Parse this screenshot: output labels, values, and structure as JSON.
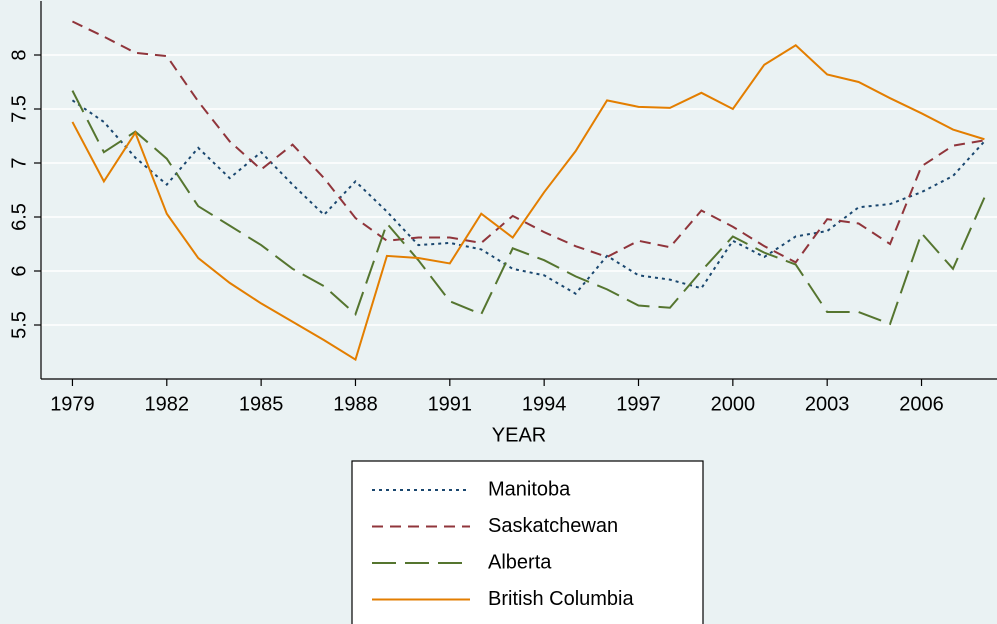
{
  "chart_data": {
    "type": "line",
    "x_label": "YEAR",
    "x": [
      1979,
      1980,
      1981,
      1982,
      1983,
      1984,
      1985,
      1986,
      1987,
      1988,
      1989,
      1990,
      1991,
      1992,
      1993,
      1994,
      1995,
      1996,
      1997,
      1998,
      1999,
      2000,
      2001,
      2002,
      2003,
      2004,
      2005,
      2006,
      2007,
      2008
    ],
    "series": [
      {
        "name": "Manitoba",
        "color": "#1a476f",
        "dash": "dot",
        "values": [
          7.58,
          7.38,
          7.05,
          6.8,
          7.14,
          6.86,
          7.1,
          6.8,
          6.52,
          6.83,
          6.55,
          6.24,
          6.26,
          6.2,
          6.02,
          5.96,
          5.79,
          6.14,
          5.96,
          5.92,
          5.84,
          6.28,
          6.13,
          6.32,
          6.37,
          6.59,
          6.62,
          6.73,
          6.88,
          7.2
        ]
      },
      {
        "name": "Saskatchewan",
        "color": "#90353b",
        "dash": "shortdash",
        "values": [
          8.31,
          8.17,
          8.02,
          7.99,
          7.57,
          7.2,
          6.94,
          7.17,
          6.86,
          6.49,
          6.28,
          6.31,
          6.31,
          6.26,
          6.51,
          6.36,
          6.23,
          6.13,
          6.28,
          6.22,
          6.56,
          6.41,
          6.23,
          6.08,
          6.48,
          6.44,
          6.25,
          6.97,
          7.16,
          7.21
        ]
      },
      {
        "name": "Alberta",
        "color": "#55752f",
        "dash": "longdash",
        "values": [
          7.67,
          7.1,
          7.29,
          7.04,
          6.6,
          6.42,
          6.24,
          6.02,
          5.86,
          5.6,
          6.44,
          6.1,
          5.72,
          5.6,
          6.21,
          6.1,
          5.95,
          5.83,
          5.68,
          5.66,
          6.0,
          6.32,
          6.17,
          6.06,
          5.62,
          5.62,
          5.51,
          6.35,
          6.02,
          6.68
        ]
      },
      {
        "name": "British Columbia",
        "color": "#e37e00",
        "dash": "solid",
        "values": [
          7.38,
          6.83,
          7.28,
          6.53,
          6.12,
          5.89,
          5.7,
          5.53,
          5.36,
          5.18,
          6.14,
          6.12,
          6.07,
          6.53,
          6.31,
          6.73,
          7.11,
          7.58,
          7.52,
          7.51,
          7.65,
          7.5,
          7.91,
          8.09,
          7.82,
          7.75,
          7.6,
          7.46,
          7.31,
          7.22
        ]
      }
    ],
    "xlim": [
      1978,
      2008.4
    ],
    "xticks": [
      1979,
      1982,
      1985,
      1988,
      1991,
      1994,
      1997,
      2000,
      2003,
      2006
    ],
    "ylim": [
      5,
      8.5
    ],
    "yticks": [
      5.5,
      6,
      6.5,
      7,
      7.5,
      8
    ],
    "grid": true
  }
}
